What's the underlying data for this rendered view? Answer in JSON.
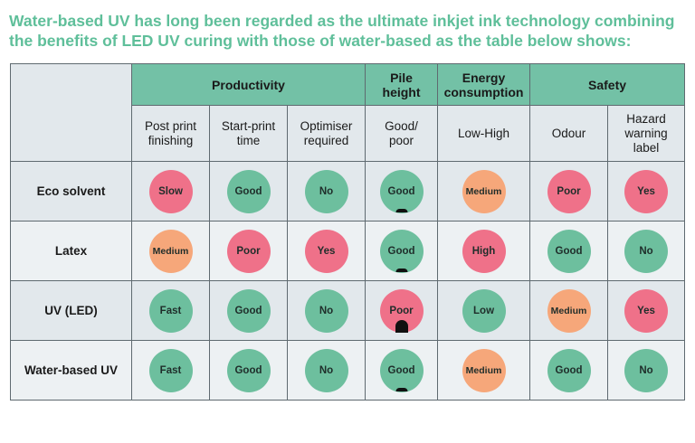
{
  "intro": {
    "line1": "Water-based UV has long been regarded as the ultimate inkjet ink technology combining",
    "line2": "the benefits of LED UV curing with those of water-based as the table below shows:"
  },
  "groups": {
    "productivity": "Productivity",
    "pile_line1": "Pile",
    "pile_line2": "height",
    "energy_line1": "Energy",
    "energy_line2": "consumption",
    "safety": "Safety"
  },
  "subheaders": {
    "post_print_l1": "Post print",
    "post_print_l2": "finishing",
    "start_print_l1": "Start-print",
    "start_print_l2": "time",
    "optimiser_l1": "Optimiser",
    "optimiser_l2": "required",
    "good_poor_l1": "Good/",
    "good_poor_l2": "poor",
    "low_high": "Low-High",
    "odour": "Odour",
    "hazard_l1": "Hazard",
    "hazard_l2": "warning",
    "hazard_l3": "label"
  },
  "rows": [
    {
      "name": "Eco solvent",
      "post_print": {
        "text": "Slow",
        "level": "poor"
      },
      "start_print": {
        "text": "Good",
        "level": "good"
      },
      "optimiser": {
        "text": "No",
        "level": "good"
      },
      "pile": {
        "text": "Good",
        "level": "good",
        "pile_marker": "low"
      },
      "energy": {
        "text": "Medium",
        "level": "medium"
      },
      "odour": {
        "text": "Poor",
        "level": "poor"
      },
      "hazard": {
        "text": "Yes",
        "level": "poor"
      }
    },
    {
      "name": "Latex",
      "post_print": {
        "text": "Medium",
        "level": "medium"
      },
      "start_print": {
        "text": "Poor",
        "level": "poor"
      },
      "optimiser": {
        "text": "Yes",
        "level": "poor"
      },
      "pile": {
        "text": "Good",
        "level": "good",
        "pile_marker": "low"
      },
      "energy": {
        "text": "High",
        "level": "poor"
      },
      "odour": {
        "text": "Good",
        "level": "good"
      },
      "hazard": {
        "text": "No",
        "level": "good"
      }
    },
    {
      "name": "UV (LED)",
      "post_print": {
        "text": "Fast",
        "level": "good"
      },
      "start_print": {
        "text": "Good",
        "level": "good"
      },
      "optimiser": {
        "text": "No",
        "level": "good"
      },
      "pile": {
        "text": "Poor",
        "level": "poor",
        "pile_marker": "high"
      },
      "energy": {
        "text": "Low",
        "level": "good"
      },
      "odour": {
        "text": "Medium",
        "level": "medium"
      },
      "hazard": {
        "text": "Yes",
        "level": "poor"
      }
    },
    {
      "name": "Water-based UV",
      "post_print": {
        "text": "Fast",
        "level": "good"
      },
      "start_print": {
        "text": "Good",
        "level": "good"
      },
      "optimiser": {
        "text": "No",
        "level": "good"
      },
      "pile": {
        "text": "Good",
        "level": "good",
        "pile_marker": "low"
      },
      "energy": {
        "text": "Medium",
        "level": "medium"
      },
      "odour": {
        "text": "Good",
        "level": "good"
      },
      "hazard": {
        "text": "No",
        "level": "good"
      }
    }
  ],
  "colors": {
    "good": "#6dbf9e",
    "poor": "#ef7189",
    "medium": "#f6a77a",
    "header_green": "#73c1a6",
    "title_green": "#5fbf9a"
  }
}
